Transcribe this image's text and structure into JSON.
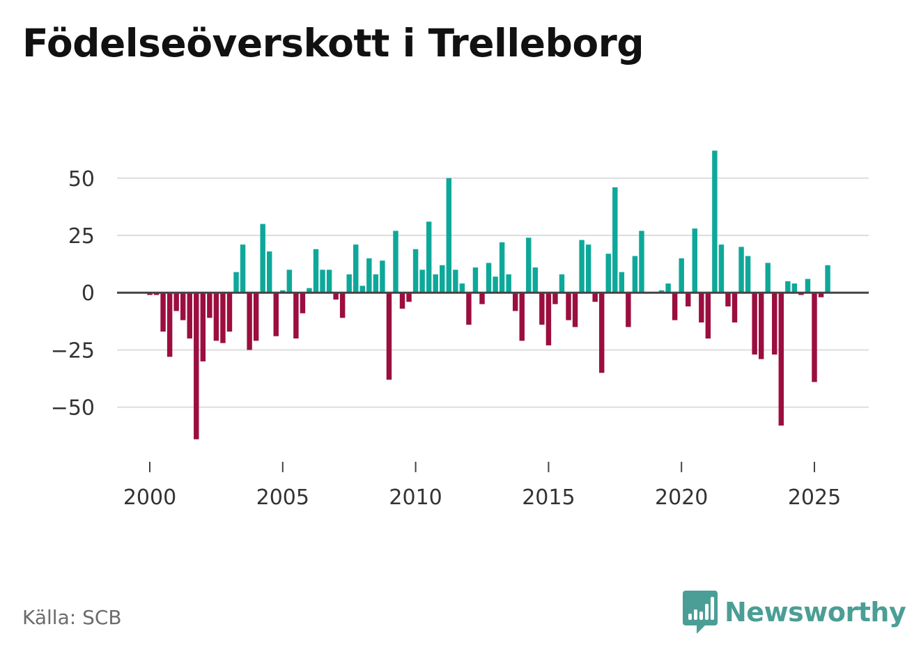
{
  "title": "Födelseöverskott i Trelleborg",
  "source": "Källa: SCB",
  "brand": {
    "name": "Newsworthy",
    "icon": "bar-chart-speech-bubble-icon",
    "color": "#4b9e96"
  },
  "colors": {
    "positive": "#0ea89a",
    "negative": "#9b0e3f",
    "zero_line": "#444444",
    "grid": "#dddddd",
    "axis_text": "#333333"
  },
  "chart_data": {
    "type": "bar",
    "title": "Födelseöverskott i Trelleborg",
    "xlabel": "",
    "ylabel": "",
    "frequency": "quarterly",
    "x_start": 2000.0,
    "x_step": 0.25,
    "xlim": [
      1999.75,
      2027.0
    ],
    "ylim": [
      -65,
      63
    ],
    "y_ticks": [
      50,
      25,
      0,
      -25,
      -50
    ],
    "y_tick_labels": [
      "50",
      "25",
      "0",
      "−25",
      "−50"
    ],
    "x_ticks": [
      2000,
      2005,
      2010,
      2015,
      2020,
      2025
    ],
    "x_tick_labels": [
      "2000",
      "2005",
      "2010",
      "2015",
      "2020",
      "2025"
    ],
    "grid": true,
    "values": [
      -1,
      -1,
      -17,
      -28,
      -8,
      -12,
      -20,
      -64,
      -30,
      -11,
      -21,
      -22,
      -17,
      9,
      21,
      -25,
      -21,
      30,
      18,
      -19,
      1,
      10,
      -20,
      -9,
      2,
      19,
      10,
      10,
      -3,
      -11,
      8,
      21,
      3,
      15,
      8,
      14,
      -38,
      27,
      -7,
      -4,
      19,
      10,
      31,
      8,
      12,
      50,
      10,
      4,
      -14,
      11,
      -5,
      13,
      7,
      22,
      8,
      -8,
      -21,
      24,
      11,
      -14,
      -23,
      -5,
      8,
      -12,
      -15,
      23,
      21,
      -4,
      -35,
      17,
      46,
      9,
      -15,
      16,
      27,
      0,
      0,
      1,
      4,
      -12,
      15,
      -6,
      28,
      -13,
      -20,
      62,
      21,
      -6,
      -13,
      20,
      16,
      -27,
      -29,
      13,
      -27,
      -58,
      5,
      4,
      -1,
      6,
      -39,
      -2,
      12
    ]
  }
}
